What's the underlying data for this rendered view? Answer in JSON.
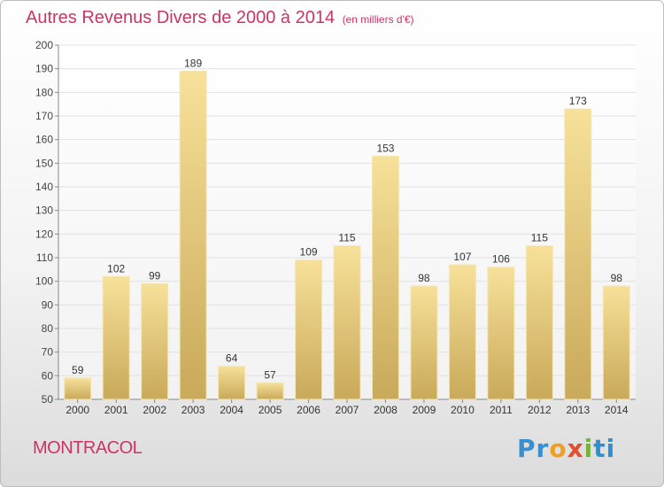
{
  "title": "Autres Revenus Divers de 2000 à 2014",
  "subtitle": "(en milliers d'€)",
  "place": "MONTRACOL",
  "logo": {
    "letters": [
      "Pr",
      "o",
      "x",
      "i",
      "ti"
    ],
    "colors": [
      "#3a8fd1",
      "#f0a020",
      "#e05030",
      "#79b23a",
      "#2f8fd0"
    ]
  },
  "colors": {
    "title": "#cc3366",
    "bar_light": "#f7e19a",
    "bar_dark": "#c9a95a",
    "grid": "#e2e2e2"
  },
  "chart_data": {
    "type": "bar",
    "categories": [
      "2000",
      "2001",
      "2002",
      "2003",
      "2004",
      "2005",
      "2006",
      "2007",
      "2008",
      "2009",
      "2010",
      "2011",
      "2012",
      "2013",
      "2014"
    ],
    "values": [
      59,
      102,
      99,
      189,
      64,
      57,
      109,
      115,
      153,
      98,
      107,
      106,
      115,
      173,
      98
    ],
    "data_labels": [
      "59",
      "102",
      "99",
      "189",
      "64",
      "57",
      "109",
      "115",
      "153",
      "98",
      "107",
      "106",
      "115",
      "173",
      "98"
    ],
    "ylim": [
      50,
      200
    ],
    "yticks": [
      50,
      60,
      70,
      80,
      90,
      100,
      110,
      120,
      130,
      140,
      150,
      160,
      170,
      180,
      190,
      200
    ],
    "ytick_labels": [
      "50",
      "60",
      "70",
      "80",
      "90",
      "100",
      "110",
      "120",
      "130",
      "140",
      "150",
      "160",
      "170",
      "180",
      "190",
      "200"
    ],
    "grid": true,
    "xlabel": "",
    "ylabel": ""
  }
}
